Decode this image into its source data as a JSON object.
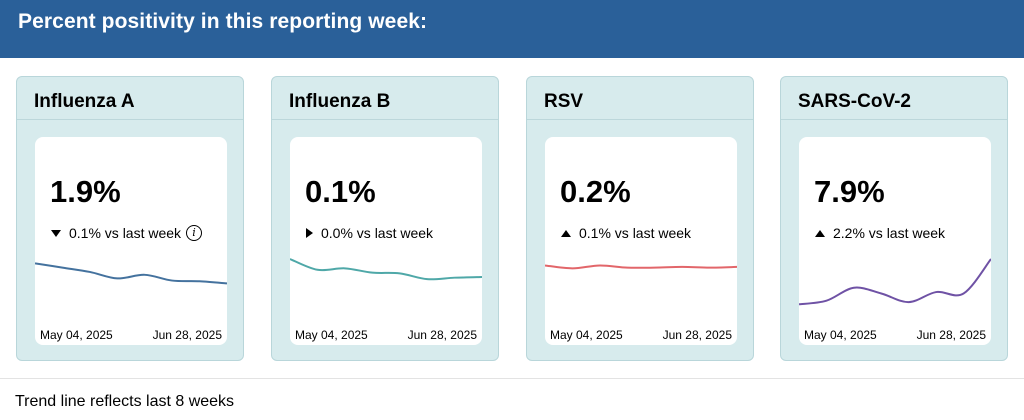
{
  "header": {
    "title": "Percent positivity in this reporting week:"
  },
  "cards": [
    {
      "title": "Influenza A",
      "value": "1.9%",
      "direction": "down",
      "change": "0.1% vs last week",
      "has_info": true,
      "date_start": "May 04, 2025",
      "date_end": "Jun 28, 2025",
      "color": "#44729e",
      "trend": [
        6,
        12,
        18,
        27,
        22,
        30,
        31,
        34
      ]
    },
    {
      "title": "Influenza B",
      "value": "0.1%",
      "direction": "right",
      "change": "0.0% vs last week",
      "has_info": false,
      "date_start": "May 04, 2025",
      "date_end": "Jun 28, 2025",
      "color": "#4fa8a8",
      "trend": [
        0,
        15,
        13,
        19,
        20,
        28,
        26,
        25
      ]
    },
    {
      "title": "RSV",
      "value": "0.2%",
      "direction": "up",
      "change": "0.1% vs last week",
      "has_info": false,
      "date_start": "May 04, 2025",
      "date_end": "Jun 28, 2025",
      "color": "#e2666a",
      "trend": [
        9,
        13,
        9,
        12,
        12,
        11,
        12,
        11
      ]
    },
    {
      "title": "SARS-CoV-2",
      "value": "7.9%",
      "direction": "up",
      "change": "2.2% vs last week",
      "has_info": false,
      "date_start": "May 04, 2025",
      "date_end": "Jun 28, 2025",
      "color": "#6f52a5",
      "trend": [
        63,
        58,
        40,
        48,
        60,
        46,
        48,
        0
      ]
    }
  ],
  "footer": {
    "note": "Trend line reflects last 8 weeks"
  }
}
